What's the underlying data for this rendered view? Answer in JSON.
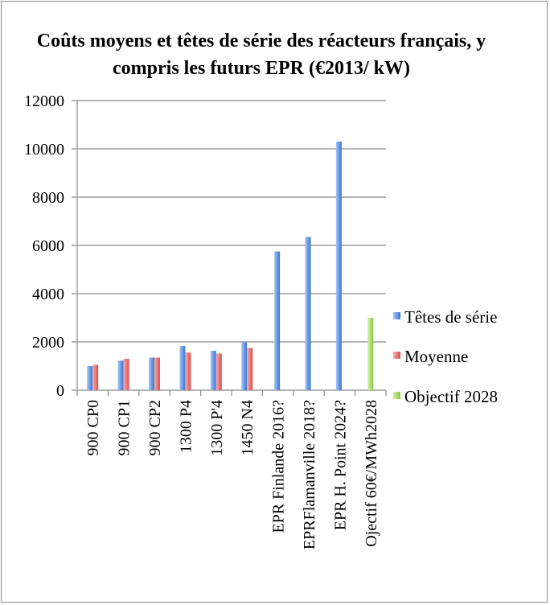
{
  "chart_data": {
    "type": "bar",
    "title": "Coûts moyens et têtes de série des réacteurs français, y compris les futurs EPR (€2013/ kW)",
    "xlabel": "",
    "ylabel": "",
    "ylim": [
      0,
      12000
    ],
    "yticks": [
      0,
      2000,
      4000,
      6000,
      8000,
      10000,
      12000
    ],
    "grid": true,
    "legend_position": "right",
    "categories": [
      "900 CP0",
      "900 CP1",
      "900 CP2",
      "1300 P4",
      "1300 P'4",
      "1450 N4",
      "EPR Finlande 2016?",
      "EPRFlamanville 2018?",
      "EPR H. Point 2024?",
      "Ojectif 60€/MWh2028"
    ],
    "series": [
      {
        "name": "Têtes de série",
        "color": "#5b8fe0",
        "values": [
          1000,
          1220,
          1350,
          1830,
          1630,
          1980,
          5750,
          6350,
          10300,
          null
        ]
      },
      {
        "name": "Moyenne",
        "color": "#e86b6b",
        "values": [
          1050,
          1300,
          1350,
          1560,
          1520,
          1750,
          null,
          null,
          null,
          null
        ]
      },
      {
        "name": "Objectif 2028",
        "color": "#a6d46a",
        "values": [
          null,
          null,
          null,
          null,
          null,
          null,
          null,
          null,
          null,
          3000
        ]
      }
    ]
  }
}
